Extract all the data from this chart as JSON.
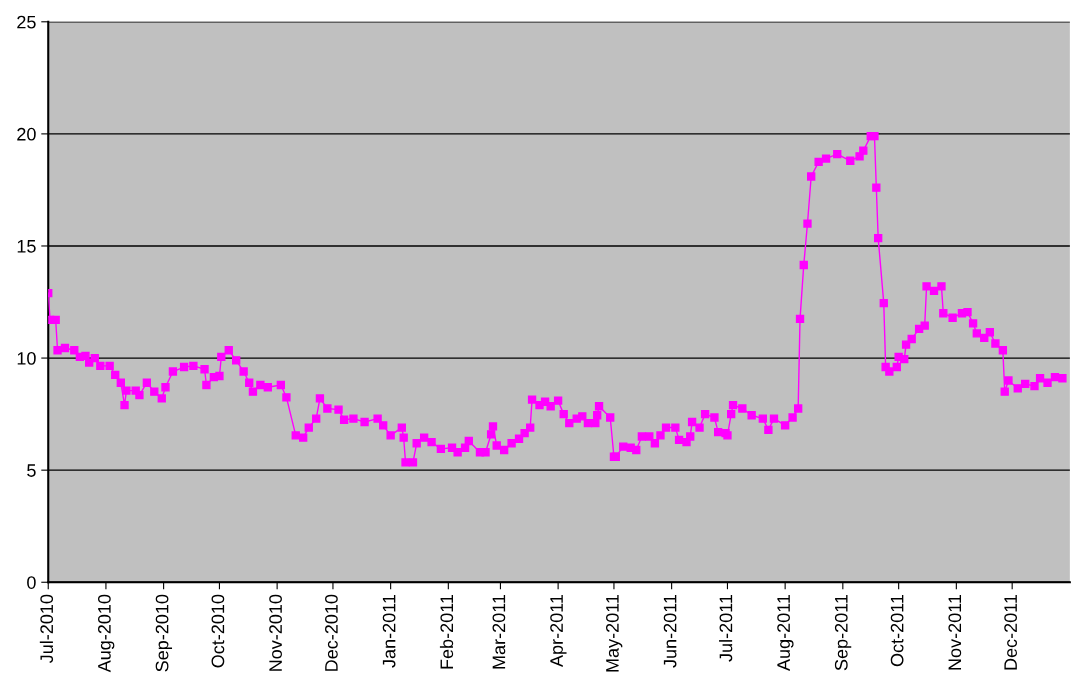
{
  "chart_data": {
    "type": "line",
    "marker": "square",
    "line_style": "solid",
    "grid": "y",
    "legend": false,
    "xlim": [
      "2010-07-01",
      "2012-01-01"
    ],
    "ylim": [
      0,
      25
    ],
    "yticks": [
      0,
      5,
      10,
      15,
      20,
      25
    ],
    "xticks": [
      {
        "value": "2010-07-01",
        "label": "Jul-2010"
      },
      {
        "value": "2010-08-01",
        "label": "Aug-2010"
      },
      {
        "value": "2010-09-01",
        "label": "Sep-2010"
      },
      {
        "value": "2010-10-01",
        "label": "Oct-2010"
      },
      {
        "value": "2010-11-01",
        "label": "Nov-2010"
      },
      {
        "value": "2010-12-01",
        "label": "Dec-2010"
      },
      {
        "value": "2011-01-01",
        "label": "Jan-2011"
      },
      {
        "value": "2011-02-01",
        "label": "Feb-2011"
      },
      {
        "value": "2011-03-01",
        "label": "Mar-2011"
      },
      {
        "value": "2011-04-01",
        "label": "Apr-2011"
      },
      {
        "value": "2011-05-01",
        "label": "May-2011"
      },
      {
        "value": "2011-06-01",
        "label": "Jun-2011"
      },
      {
        "value": "2011-07-01",
        "label": "Jul-2011"
      },
      {
        "value": "2011-08-01",
        "label": "Aug-2011"
      },
      {
        "value": "2011-09-01",
        "label": "Sep-2011"
      },
      {
        "value": "2011-10-01",
        "label": "Oct-2011"
      },
      {
        "value": "2011-11-01",
        "label": "Nov-2011"
      },
      {
        "value": "2011-12-01",
        "label": "Dec-2011"
      }
    ],
    "x": [
      "2010-07-01",
      "2010-07-02",
      "2010-07-05",
      "2010-07-06",
      "2010-07-10",
      "2010-07-15",
      "2010-07-18",
      "2010-07-21",
      "2010-07-23",
      "2010-07-26",
      "2010-07-29",
      "2010-08-03",
      "2010-08-06",
      "2010-08-09",
      "2010-08-11",
      "2010-08-12",
      "2010-08-17",
      "2010-08-19",
      "2010-08-23",
      "2010-08-27",
      "2010-08-31",
      "2010-09-02",
      "2010-09-06",
      "2010-09-12",
      "2010-09-17",
      "2010-09-23",
      "2010-09-24",
      "2010-09-28",
      "2010-10-01",
      "2010-10-02",
      "2010-10-06",
      "2010-10-10",
      "2010-10-14",
      "2010-10-17",
      "2010-10-19",
      "2010-10-23",
      "2010-10-27",
      "2010-11-03",
      "2010-11-06",
      "2010-11-11",
      "2010-11-15",
      "2010-11-18",
      "2010-11-22",
      "2010-11-24",
      "2010-11-28",
      "2010-12-04",
      "2010-12-07",
      "2010-12-12",
      "2010-12-18",
      "2010-12-25",
      "2010-12-28",
      "2011-01-01",
      "2011-01-07",
      "2011-01-08",
      "2011-01-09",
      "2011-01-13",
      "2011-01-15",
      "2011-01-19",
      "2011-01-23",
      "2011-01-28",
      "2011-02-03",
      "2011-02-06",
      "2011-02-10",
      "2011-02-12",
      "2011-02-18",
      "2011-02-21",
      "2011-02-24",
      "2011-02-25",
      "2011-02-27",
      "2011-03-03",
      "2011-03-07",
      "2011-03-11",
      "2011-03-14",
      "2011-03-17",
      "2011-03-18",
      "2011-03-22",
      "2011-03-25",
      "2011-03-28",
      "2011-04-01",
      "2011-04-04",
      "2011-04-07",
      "2011-04-11",
      "2011-04-14",
      "2011-04-17",
      "2011-04-21",
      "2011-04-22",
      "2011-04-23",
      "2011-04-29",
      "2011-05-01",
      "2011-05-02",
      "2011-05-06",
      "2011-05-10",
      "2011-05-13",
      "2011-05-16",
      "2011-05-20",
      "2011-05-23",
      "2011-05-26",
      "2011-05-29",
      "2011-06-03",
      "2011-06-05",
      "2011-06-09",
      "2011-06-11",
      "2011-06-12",
      "2011-06-16",
      "2011-06-19",
      "2011-06-24",
      "2011-06-26",
      "2011-06-30",
      "2011-07-01",
      "2011-07-03",
      "2011-07-04",
      "2011-07-09",
      "2011-07-14",
      "2011-07-20",
      "2011-07-23",
      "2011-07-26",
      "2011-08-01",
      "2011-08-05",
      "2011-08-08",
      "2011-08-09",
      "2011-08-11",
      "2011-08-13",
      "2011-08-15",
      "2011-08-19",
      "2011-08-23",
      "2011-08-29",
      "2011-09-05",
      "2011-09-10",
      "2011-09-12",
      "2011-09-16",
      "2011-09-18",
      "2011-09-19",
      "2011-09-20",
      "2011-09-23",
      "2011-09-24",
      "2011-09-26",
      "2011-09-30",
      "2011-10-01",
      "2011-10-04",
      "2011-10-05",
      "2011-10-08",
      "2011-10-12",
      "2011-10-15",
      "2011-10-16",
      "2011-10-20",
      "2011-10-24",
      "2011-10-25",
      "2011-10-30",
      "2011-11-04",
      "2011-11-07",
      "2011-11-10",
      "2011-11-12",
      "2011-11-16",
      "2011-11-19",
      "2011-11-22",
      "2011-11-26",
      "2011-11-27",
      "2011-11-29",
      "2011-12-04",
      "2011-12-08",
      "2011-12-13",
      "2011-12-16",
      "2011-12-20",
      "2011-12-24",
      "2011-12-28"
    ],
    "series": [
      {
        "color": "#ff00ff",
        "values": [
          12.9,
          11.7,
          11.7,
          10.35,
          10.45,
          10.35,
          10.05,
          10.1,
          9.8,
          10,
          9.65,
          9.65,
          9.25,
          8.9,
          7.9,
          8.55,
          8.55,
          8.35,
          8.9,
          8.5,
          8.2,
          8.7,
          9.4,
          9.6,
          9.65,
          9.5,
          8.8,
          9.15,
          9.2,
          10.05,
          10.35,
          9.9,
          9.4,
          8.9,
          8.5,
          8.8,
          8.7,
          8.8,
          8.25,
          6.55,
          6.45,
          6.9,
          7.3,
          8.2,
          7.75,
          7.7,
          7.25,
          7.3,
          7.15,
          7.3,
          7.0,
          6.55,
          6.9,
          6.45,
          5.35,
          5.35,
          6.2,
          6.45,
          6.25,
          5.95,
          6.0,
          5.8,
          6.0,
          6.3,
          5.8,
          5.8,
          6.6,
          6.95,
          6.1,
          5.9,
          6.2,
          6.4,
          6.65,
          6.9,
          8.15,
          7.9,
          8.05,
          7.85,
          8.1,
          7.5,
          7.1,
          7.3,
          7.4,
          7.1,
          7.1,
          7.45,
          7.85,
          7.35,
          5.6,
          5.6,
          6.05,
          6.0,
          5.9,
          6.5,
          6.5,
          6.2,
          6.55,
          6.9,
          6.9,
          6.35,
          6.25,
          6.5,
          7.15,
          6.9,
          7.5,
          7.35,
          6.7,
          6.65,
          6.55,
          7.5,
          7.9,
          7.75,
          7.45,
          7.3,
          6.8,
          7.3,
          7.0,
          7.35,
          7.75,
          11.75,
          14.15,
          16.0,
          18.1,
          18.75,
          18.9,
          19.1,
          18.8,
          19.0,
          19.25,
          19.9,
          19.9,
          17.6,
          15.35,
          12.45,
          9.6,
          9.4,
          9.6,
          10.05,
          9.95,
          10.6,
          10.85,
          11.3,
          11.45,
          13.2,
          13.0,
          13.2,
          12.0,
          11.8,
          12.0,
          12.05,
          11.55,
          11.1,
          10.9,
          11.15,
          10.65,
          10.35,
          8.5,
          9.0,
          8.65,
          8.85,
          8.75,
          9.1,
          8.9,
          9.15,
          9.1
        ]
      }
    ]
  }
}
